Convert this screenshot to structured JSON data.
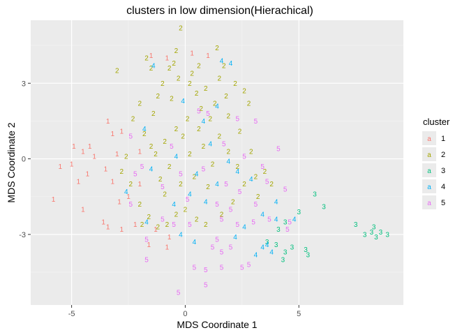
{
  "chart_data": {
    "type": "scatter",
    "title": "clusters in low dimension(Hierachical)",
    "xlabel": "MDS Coordinate 1",
    "ylabel": "MDS Coordinate 2",
    "xlim": [
      -6.8,
      9.6
    ],
    "ylim": [
      -5.8,
      5.5
    ],
    "x_ticks": [
      -5,
      0,
      5
    ],
    "y_ticks": [
      3,
      0,
      -3
    ],
    "x_tick_labels": [
      "-5",
      "0",
      "5"
    ],
    "y_tick_labels": [
      "3",
      "0",
      "-3"
    ],
    "grid": true,
    "legend": {
      "title": "cluster",
      "position": "right",
      "entries": [
        {
          "key": "1",
          "label": "1",
          "symbol": "a",
          "color": "#F8766D"
        },
        {
          "key": "2",
          "label": "2",
          "symbol": "a",
          "color": "#A3A500"
        },
        {
          "key": "3",
          "label": "3",
          "symbol": "a",
          "color": "#00BF7D"
        },
        {
          "key": "4",
          "label": "4",
          "symbol": "a",
          "color": "#00B0F6"
        },
        {
          "key": "5",
          "label": "5",
          "symbol": "a",
          "color": "#E76BF3"
        }
      ]
    },
    "series": [
      {
        "name": "1",
        "color": "#F8766D",
        "points": [
          [
            -5.0,
            -0.2
          ],
          [
            -4.5,
            0.3
          ],
          [
            -4.0,
            0.1
          ],
          [
            -5.5,
            -0.3
          ],
          [
            -3.5,
            -0.4
          ],
          [
            -3.0,
            0.2
          ],
          [
            -2.8,
            1.1
          ],
          [
            -3.2,
            1.0
          ],
          [
            -4.2,
            0.5
          ],
          [
            -5.8,
            -1.6
          ],
          [
            -4.5,
            -2.0
          ],
          [
            -3.6,
            -2.5
          ],
          [
            -3.4,
            -2.7
          ],
          [
            -2.8,
            -2.8
          ],
          [
            -2.2,
            -2.6
          ],
          [
            -1.6,
            -3.4
          ],
          [
            -0.8,
            -3.5
          ],
          [
            -0.7,
            -3.1
          ],
          [
            -1.3,
            -2.8
          ],
          [
            -2.5,
            -1.5
          ],
          [
            -2.9,
            -1.7
          ],
          [
            -3.2,
            -0.9
          ],
          [
            -1.5,
            4.1
          ],
          [
            0.3,
            4.2
          ],
          [
            1.0,
            4.1
          ],
          [
            -0.8,
            4.0
          ],
          [
            -2.0,
            0.3
          ],
          [
            -3.4,
            1.5
          ],
          [
            -4.9,
            0.5
          ],
          [
            -4.3,
            -0.6
          ],
          [
            -4.7,
            -0.9
          ],
          [
            -2.0,
            -1.0
          ]
        ]
      },
      {
        "name": "2",
        "color": "#A3A500",
        "points": [
          [
            -0.2,
            5.2
          ],
          [
            1.4,
            4.4
          ],
          [
            -1.7,
            4.0
          ],
          [
            -1.5,
            3.6
          ],
          [
            -3.0,
            3.5
          ],
          [
            -0.5,
            3.8
          ],
          [
            0.6,
            3.7
          ],
          [
            1.7,
            3.7
          ],
          [
            1.5,
            3.2
          ],
          [
            2.2,
            3.0
          ],
          [
            -1.0,
            3.0
          ],
          [
            -0.3,
            3.2
          ],
          [
            0.2,
            3.0
          ],
          [
            0.9,
            2.8
          ],
          [
            -1.2,
            2.5
          ],
          [
            -2.0,
            2.2
          ],
          [
            -2.3,
            1.6
          ],
          [
            -1.8,
            1.0
          ],
          [
            -1.5,
            0.5
          ],
          [
            -2.6,
            0.1
          ],
          [
            -2.8,
            -0.5
          ],
          [
            -2.4,
            -1.0
          ],
          [
            -2.0,
            -1.8
          ],
          [
            -1.6,
            -2.3
          ],
          [
            -1.2,
            -2.7
          ],
          [
            -0.8,
            -2.6
          ],
          [
            -0.4,
            -2.2
          ],
          [
            0.0,
            -2.0
          ],
          [
            0.5,
            -2.4
          ],
          [
            0.9,
            -2.6
          ],
          [
            1.6,
            -2.2
          ],
          [
            2.1,
            -1.7
          ],
          [
            2.6,
            -1.0
          ],
          [
            3.1,
            -0.7
          ],
          [
            3.5,
            -0.5
          ],
          [
            3.8,
            -1.0
          ],
          [
            3.2,
            -1.5
          ],
          [
            2.9,
            0.3
          ],
          [
            2.4,
            1.1
          ],
          [
            1.9,
            1.7
          ],
          [
            1.3,
            2.2
          ],
          [
            0.7,
            2.0
          ],
          [
            0.1,
            1.6
          ],
          [
            -0.4,
            1.2
          ],
          [
            -0.9,
            0.7
          ],
          [
            -1.3,
            0.2
          ],
          [
            -0.7,
            -0.3
          ],
          [
            0.4,
            -0.7
          ],
          [
            1.0,
            -1.1
          ],
          [
            0.8,
            0.5
          ],
          [
            0.2,
            0.2
          ],
          [
            -0.2,
            -1.0
          ],
          [
            1.5,
            0.9
          ],
          [
            -0.6,
            2.4
          ],
          [
            0.5,
            2.6
          ],
          [
            2.8,
            2.2
          ],
          [
            -1.9,
            -2.6
          ],
          [
            -0.9,
            -1.4
          ],
          [
            1.2,
            -0.2
          ],
          [
            -0.1,
            0.9
          ],
          [
            0.6,
            1.2
          ],
          [
            1.9,
            0.3
          ],
          [
            -1.4,
            1.8
          ],
          [
            2.3,
            -0.3
          ],
          [
            1.1,
            1.6
          ],
          [
            -1.1,
            -0.8
          ],
          [
            0.3,
            3.4
          ],
          [
            -0.4,
            4.3
          ],
          [
            -0.7,
            3.6
          ],
          [
            1.8,
            2.5
          ],
          [
            2.6,
            2.7
          ]
        ]
      },
      {
        "name": "3",
        "color": "#00BF7D",
        "points": [
          [
            5.7,
            -1.4
          ],
          [
            6.1,
            -1.9
          ],
          [
            5.0,
            -2.1
          ],
          [
            7.5,
            -2.6
          ],
          [
            8.3,
            -2.7
          ],
          [
            8.6,
            -2.9
          ],
          [
            8.9,
            -3.0
          ],
          [
            8.2,
            -2.9
          ],
          [
            8.4,
            -3.1
          ],
          [
            7.9,
            -3.0
          ],
          [
            5.3,
            -3.6
          ],
          [
            5.4,
            -3.8
          ],
          [
            4.7,
            -3.5
          ],
          [
            4.4,
            -3.7
          ],
          [
            4.1,
            -2.8
          ],
          [
            4.4,
            -2.5
          ],
          [
            4.0,
            -3.4
          ],
          [
            3.6,
            -3.3
          ],
          [
            4.3,
            -4.0
          ]
        ]
      },
      {
        "name": "4",
        "color": "#00B0F6",
        "points": [
          [
            2.0,
            3.8
          ],
          [
            1.6,
            3.9
          ],
          [
            -1.4,
            3.7
          ],
          [
            -1.8,
            1.2
          ],
          [
            -1.5,
            -0.4
          ],
          [
            1.1,
            0.6
          ],
          [
            0.5,
            -0.6
          ],
          [
            1.4,
            -1.0
          ],
          [
            2.3,
            -0.5
          ],
          [
            2.9,
            -0.8
          ],
          [
            3.4,
            -2.2
          ],
          [
            4.0,
            -2.4
          ],
          [
            4.8,
            -2.4
          ],
          [
            4.0,
            -1.7
          ],
          [
            3.8,
            -3.7
          ],
          [
            3.6,
            -3.4
          ],
          [
            3.4,
            -3.5
          ],
          [
            3.1,
            -3.8
          ],
          [
            2.6,
            -2.7
          ],
          [
            2.2,
            -3.1
          ],
          [
            0.4,
            -3.3
          ],
          [
            -0.2,
            -3.0
          ],
          [
            -0.5,
            -1.8
          ],
          [
            -1.7,
            -2.5
          ],
          [
            -2.6,
            -1.3
          ],
          [
            0.8,
            1.5
          ],
          [
            -0.1,
            2.3
          ],
          [
            1.9,
            -0.1
          ],
          [
            -0.4,
            0.1
          ],
          [
            0.9,
            -1.7
          ],
          [
            1.4,
            2.1
          ],
          [
            0.2,
            -1.4
          ]
        ]
      },
      {
        "name": "5",
        "color": "#E76BF3",
        "points": [
          [
            0.6,
            1.9
          ],
          [
            1.0,
            1.8
          ],
          [
            2.3,
            1.6
          ],
          [
            3.1,
            1.5
          ],
          [
            4.1,
            0.4
          ],
          [
            3.4,
            -0.3
          ],
          [
            3.6,
            -0.9
          ],
          [
            4.4,
            -1.2
          ],
          [
            3.1,
            -1.8
          ],
          [
            3.7,
            -2.4
          ],
          [
            3.0,
            -2.5
          ],
          [
            2.3,
            -2.6
          ],
          [
            1.6,
            -2.4
          ],
          [
            1.4,
            -1.8
          ],
          [
            2.0,
            -2.0
          ],
          [
            1.4,
            -3.2
          ],
          [
            1.2,
            -3.5
          ],
          [
            1.6,
            -3.7
          ],
          [
            2.0,
            -3.5
          ],
          [
            2.5,
            -4.3
          ],
          [
            2.8,
            -4.2
          ],
          [
            1.6,
            -4.3
          ],
          [
            0.9,
            -4.4
          ],
          [
            0.4,
            -4.3
          ],
          [
            -1.7,
            -4.0
          ],
          [
            -1.7,
            -3.2
          ],
          [
            -1.0,
            -2.4
          ],
          [
            -0.5,
            -2.6
          ],
          [
            0.2,
            -2.6
          ],
          [
            -2.4,
            -1.8
          ],
          [
            -2.2,
            -0.6
          ],
          [
            -1.9,
            -0.3
          ],
          [
            -2.4,
            0.9
          ],
          [
            -1.0,
            -1.1
          ],
          [
            -0.2,
            -0.6
          ],
          [
            0.8,
            -0.4
          ],
          [
            1.8,
            -1.0
          ],
          [
            2.6,
            0.1
          ],
          [
            4.6,
            -2.5
          ],
          [
            4.5,
            -2.8
          ],
          [
            -0.3,
            -5.3
          ],
          [
            0.9,
            -5.0
          ],
          [
            -0.6,
            0.5
          ],
          [
            0.1,
            -1.6
          ],
          [
            2.4,
            -1.3
          ],
          [
            1.7,
            0.6
          ]
        ]
      }
    ]
  }
}
